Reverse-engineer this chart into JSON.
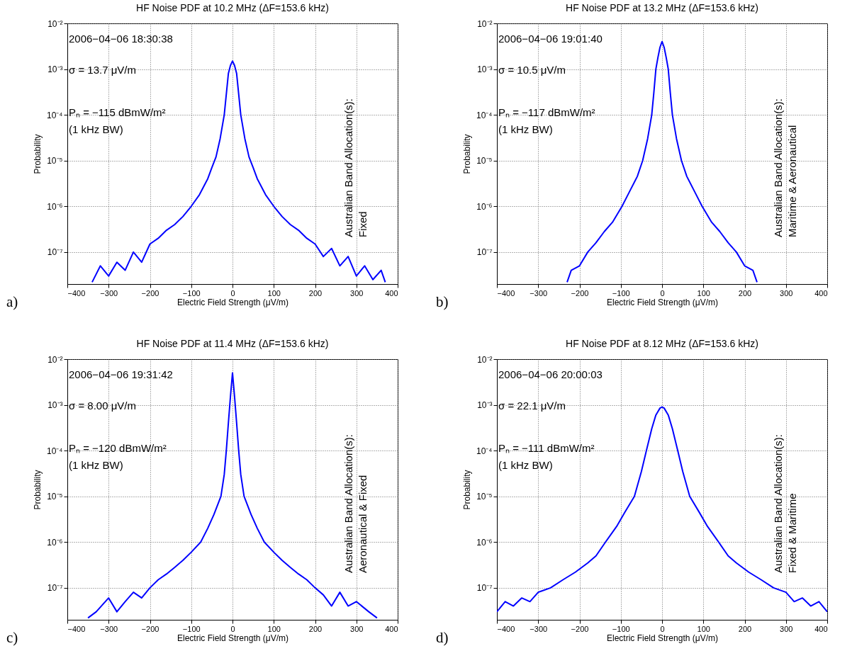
{
  "chart_data": [
    {
      "type": "line",
      "title": "HF Noise PDF at 10.2 MHz (ΔF=153.6 kHz)",
      "xlabel": "Electric Field Strength (μV/m)",
      "ylabel": "Probability",
      "log": true,
      "grid": true,
      "xlim": [
        -400,
        400
      ],
      "xticks": [
        -400,
        -300,
        -200,
        -100,
        0,
        100,
        200,
        300,
        400
      ],
      "ylim": [
        2e-08,
        0.01
      ],
      "yticks": [
        {
          "value": 1e-07,
          "label": "10⁻⁷"
        },
        {
          "value": 1e-06,
          "label": "10⁻⁶"
        },
        {
          "value": 1e-05,
          "label": "10⁻⁵"
        },
        {
          "value": 0.0001,
          "label": "10⁻⁴"
        },
        {
          "value": 0.001,
          "label": "10⁻³"
        },
        {
          "value": 0.01,
          "label": "10⁻²"
        }
      ],
      "annotations": [
        "2006−04−06  18:30:38",
        "σ = 13.7 μV/m",
        "Pₙ = −115 dBmW/m²",
        "(1 kHz BW)",
        "Australian Band Allocation(s):",
        "Fixed",
        "a)"
      ],
      "x": [
        -340,
        -320,
        -300,
        -280,
        -260,
        -240,
        -220,
        -200,
        -180,
        -160,
        -140,
        -120,
        -100,
        -80,
        -60,
        -50,
        -40,
        -30,
        -20,
        -10,
        -5,
        0,
        5,
        10,
        20,
        30,
        40,
        50,
        60,
        80,
        100,
        120,
        140,
        160,
        180,
        200,
        220,
        240,
        260,
        280,
        300,
        320,
        340,
        360,
        370
      ],
      "series": [
        {
          "color": "#0000ff",
          "values": [
            2.2e-08,
            5e-08,
            3e-08,
            6e-08,
            4e-08,
            1e-07,
            6e-08,
            1.5e-07,
            2e-07,
            3e-07,
            4e-07,
            6e-07,
            1e-06,
            1.8e-06,
            4e-06,
            7e-06,
            1.2e-05,
            3e-05,
            0.0001,
            0.0008,
            0.0012,
            0.0015,
            0.0012,
            0.0008,
            0.0001,
            3e-05,
            1.2e-05,
            7e-06,
            4e-06,
            1.8e-06,
            1e-06,
            6e-07,
            4e-07,
            3e-07,
            2e-07,
            1.5e-07,
            8e-08,
            1.2e-07,
            5e-08,
            8e-08,
            3e-08,
            5e-08,
            2.5e-08,
            4e-08,
            2.2e-08
          ]
        }
      ]
    },
    {
      "type": "line",
      "title": "HF Noise PDF at 13.2 MHz (ΔF=153.6 kHz)",
      "xlabel": "Electric Field Strength (μV/m)",
      "ylabel": "Probability",
      "log": true,
      "grid": true,
      "xlim": [
        -400,
        400
      ],
      "xticks": [
        -400,
        -300,
        -200,
        -100,
        0,
        100,
        200,
        300,
        400
      ],
      "ylim": [
        2e-08,
        0.01
      ],
      "yticks": [
        {
          "value": 1e-07,
          "label": "10⁻⁷"
        },
        {
          "value": 1e-06,
          "label": "10⁻⁶"
        },
        {
          "value": 1e-05,
          "label": "10⁻⁵"
        },
        {
          "value": 0.0001,
          "label": "10⁻⁴"
        },
        {
          "value": 0.001,
          "label": "10⁻³"
        },
        {
          "value": 0.01,
          "label": "10⁻²"
        }
      ],
      "annotations": [
        "2006−04−06  19:01:40",
        "σ = 10.5 μV/m",
        "Pₙ = −117 dBmW/m²",
        "(1 kHz BW)",
        "Australian Band Allocation(s):",
        "Maritime & Aeronautical",
        "b)"
      ],
      "x": [
        -230,
        -220,
        -200,
        -180,
        -160,
        -140,
        -120,
        -97,
        -80,
        -60,
        -47,
        -35,
        -25,
        -20,
        -15,
        -10,
        -5,
        0,
        5,
        10,
        15,
        20,
        25,
        35,
        47,
        60,
        80,
        97,
        120,
        140,
        160,
        180,
        200,
        220,
        230
      ],
      "series": [
        {
          "color": "#0000ff",
          "values": [
            2.2e-08,
            4e-08,
            5e-08,
            1e-07,
            1.6e-07,
            2.8e-07,
            4.5e-07,
            1e-06,
            2e-06,
            4.5e-06,
            1e-05,
            3e-05,
            0.0001,
            0.0003,
            0.001,
            0.0018,
            0.003,
            0.004,
            0.003,
            0.0018,
            0.001,
            0.0003,
            0.0001,
            3e-05,
            1e-05,
            4.5e-06,
            2e-06,
            1e-06,
            4.5e-07,
            2.8e-07,
            1.6e-07,
            1e-07,
            5e-08,
            4e-08,
            2.2e-08
          ]
        }
      ]
    },
    {
      "type": "line",
      "title": "HF Noise PDF at 11.4 MHz (ΔF=153.6 kHz)",
      "xlabel": "Electric Field Strength (μV/m)",
      "ylabel": "Probability",
      "log": true,
      "grid": true,
      "xlim": [
        -400,
        400
      ],
      "xticks": [
        -400,
        -300,
        -200,
        -100,
        0,
        100,
        200,
        300,
        400
      ],
      "ylim": [
        2e-08,
        0.01
      ],
      "yticks": [
        {
          "value": 1e-07,
          "label": "10⁻⁷"
        },
        {
          "value": 1e-06,
          "label": "10⁻⁶"
        },
        {
          "value": 1e-05,
          "label": "10⁻⁵"
        },
        {
          "value": 0.0001,
          "label": "10⁻⁴"
        },
        {
          "value": 0.001,
          "label": "10⁻³"
        },
        {
          "value": 0.01,
          "label": "10⁻²"
        }
      ],
      "annotations": [
        "2006−04−06  19:31:42",
        "σ = 8.00 μV/m",
        "Pₙ = −120 dBmW/m²",
        "(1 kHz BW)",
        "Australian Band Allocation(s):",
        "Aeronautical & Fixed",
        "c)"
      ],
      "x": [
        -350,
        -330,
        -300,
        -280,
        -260,
        -240,
        -220,
        -200,
        -180,
        -160,
        -140,
        -120,
        -100,
        -77,
        -60,
        -45,
        -28,
        -20,
        -15,
        -10,
        -5,
        0,
        5,
        10,
        15,
        20,
        28,
        45,
        60,
        77,
        100,
        120,
        140,
        160,
        180,
        200,
        220,
        240,
        260,
        280,
        300,
        330,
        350
      ],
      "series": [
        {
          "color": "#0000ff",
          "values": [
            2.2e-08,
            3e-08,
            6e-08,
            3e-08,
            5e-08,
            8e-08,
            6e-08,
            1e-07,
            1.5e-07,
            2e-07,
            2.8e-07,
            4e-07,
            6e-07,
            1e-06,
            2e-06,
            4e-06,
            1e-05,
            3e-05,
            0.0001,
            0.0004,
            0.0015,
            0.005,
            0.0015,
            0.0004,
            0.0001,
            3e-05,
            1e-05,
            4e-06,
            2e-06,
            1e-06,
            6e-07,
            4e-07,
            2.8e-07,
            2e-07,
            1.5e-07,
            1e-07,
            7e-08,
            4e-08,
            8e-08,
            4e-08,
            5e-08,
            3e-08,
            2.2e-08
          ]
        }
      ]
    },
    {
      "type": "line",
      "title": "HF Noise PDF at 8.12 MHz (ΔF=153.6 kHz)",
      "xlabel": "Electric Field Strength (μV/m)",
      "ylabel": "Probability",
      "log": true,
      "grid": true,
      "xlim": [
        -400,
        400
      ],
      "xticks": [
        -400,
        -300,
        -200,
        -100,
        0,
        100,
        200,
        300,
        400
      ],
      "ylim": [
        2e-08,
        0.01
      ],
      "yticks": [
        {
          "value": 1e-07,
          "label": "10⁻⁷"
        },
        {
          "value": 1e-06,
          "label": "10⁻⁶"
        },
        {
          "value": 1e-05,
          "label": "10⁻⁵"
        },
        {
          "value": 0.0001,
          "label": "10⁻⁴"
        },
        {
          "value": 0.001,
          "label": "10⁻³"
        },
        {
          "value": 0.01,
          "label": "10⁻²"
        }
      ],
      "annotations": [
        "2006−04−06  20:00:03",
        "σ = 22.1 μV/m",
        "Pₙ = −111 dBmW/m²",
        "(1 kHz BW)",
        "Australian Band Allocation(s):",
        "Fixed & Maritime",
        "d)"
      ],
      "x": [
        -400,
        -380,
        -360,
        -340,
        -320,
        -300,
        -270,
        -240,
        -210,
        -180,
        -160,
        -137,
        -110,
        -90,
        -67,
        -50,
        -38,
        -25,
        -15,
        -5,
        0,
        5,
        15,
        25,
        38,
        50,
        67,
        90,
        110,
        137,
        160,
        180,
        210,
        240,
        270,
        300,
        320,
        340,
        360,
        380,
        400
      ],
      "series": [
        {
          "color": "#0000ff",
          "values": [
            3e-08,
            5e-08,
            4e-08,
            6e-08,
            5e-08,
            8e-08,
            1e-07,
            1.5e-07,
            2.2e-07,
            3.5e-07,
            5e-07,
            1e-06,
            2.2e-06,
            4.5e-06,
            1e-05,
            3.5e-05,
            0.0001,
            0.0003,
            0.0006,
            0.00085,
            0.0009,
            0.00085,
            0.0006,
            0.0003,
            0.0001,
            3.5e-05,
            1e-05,
            4.5e-06,
            2.2e-06,
            1e-06,
            5e-07,
            3.5e-07,
            2.2e-07,
            1.5e-07,
            1e-07,
            8e-08,
            5e-08,
            6e-08,
            4e-08,
            5e-08,
            3e-08
          ]
        }
      ]
    }
  ]
}
